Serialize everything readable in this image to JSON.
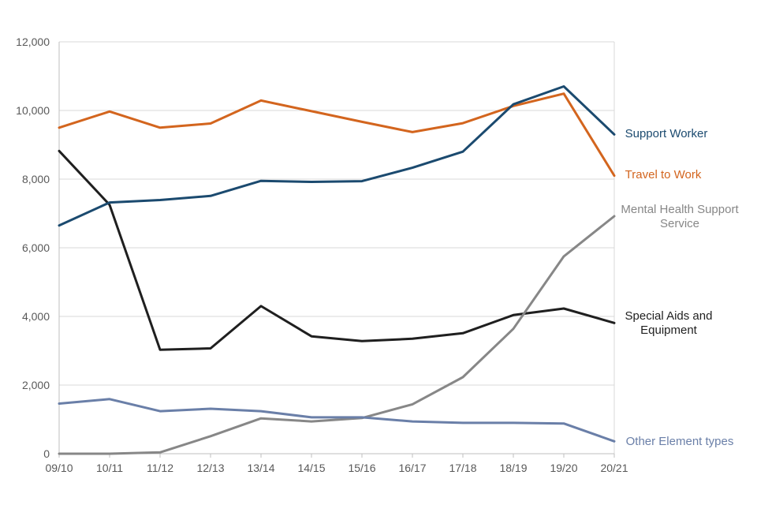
{
  "chart_data": {
    "type": "line",
    "title": "",
    "xlabel": "",
    "ylabel": "",
    "categories": [
      "09/10",
      "10/11",
      "11/12",
      "12/13",
      "13/14",
      "14/15",
      "15/16",
      "16/17",
      "17/18",
      "18/19",
      "19/20",
      "20/21"
    ],
    "ylim": [
      0,
      12000
    ],
    "yticks": [
      "0",
      "2,000",
      "4,000",
      "6,000",
      "8,000",
      "10,000",
      "12,000"
    ],
    "ytick_values": [
      0,
      2000,
      4000,
      6000,
      8000,
      10000,
      12000
    ],
    "grid": true,
    "legend": "labels at right end of each line",
    "series": [
      {
        "key": "special-aids",
        "name": "Special Aids and Equipment",
        "label_lines": [
          "Special Aids and",
          "Equipment"
        ],
        "color": "#1f1f1f",
        "values": [
          8820,
          7250,
          3030,
          3070,
          4300,
          3420,
          3280,
          3350,
          3510,
          4040,
          4230,
          3810
        ]
      },
      {
        "key": "travel-to-work",
        "name": "Travel to Work",
        "label_lines": [
          "Travel to Work"
        ],
        "color": "#d3651e",
        "values": [
          9500,
          9970,
          9500,
          9620,
          10290,
          9980,
          9670,
          9370,
          9630,
          10130,
          10490,
          8100
        ]
      },
      {
        "key": "support-worker",
        "name": "Support Worker",
        "label_lines": [
          "Support Worker"
        ],
        "color": "#1b4a6f",
        "values": [
          6650,
          7320,
          7390,
          7510,
          7950,
          7920,
          7940,
          8330,
          8800,
          10180,
          10700,
          9300
        ]
      },
      {
        "key": "mental-health",
        "name": "Mental Health Support Service",
        "label_lines": [
          "Mental Health Support",
          "Service"
        ],
        "color": "#878787",
        "values": [
          0,
          0,
          40,
          510,
          1030,
          940,
          1040,
          1440,
          2230,
          3640,
          5750,
          6920
        ]
      },
      {
        "key": "other-element",
        "name": "Other Element types",
        "label_lines": [
          "Other Element types"
        ],
        "color": "#6a7fa8",
        "values": [
          1460,
          1590,
          1240,
          1310,
          1240,
          1060,
          1060,
          940,
          900,
          900,
          880,
          360
        ]
      }
    ]
  }
}
